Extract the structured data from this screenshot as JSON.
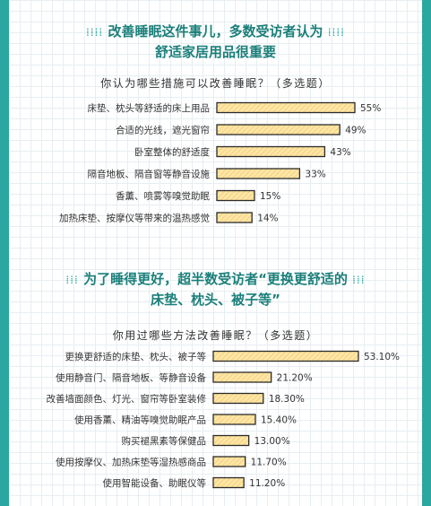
{
  "colors": {
    "bar_fill": "#fde6a8",
    "bar_stroke": "#2b2b2b",
    "title": "#1b7f7a",
    "frame": "#2aa7a0",
    "hatch": "#f6c96b"
  },
  "chart_data": [
    {
      "type": "bar",
      "orientation": "horizontal",
      "title_lines": [
        "改善睡眠这件事儿，多数受访者认为",
        "舒适家居用品很重要"
      ],
      "subtitle": "你认为哪些措施可以改善睡眠？（多选题）",
      "categories": [
        "床垫、枕头等舒适的床上用品",
        "合适的光线，遮光窗帘",
        "卧室整体的舒适度",
        "隔音地板、隔音窗等静音设施",
        "香薰、喷雾等嗅觉助眠",
        "加热床垫、按摩仪等带来的温热感觉"
      ],
      "values": [
        55,
        49,
        43,
        33,
        15,
        14
      ],
      "value_labels": [
        "55%",
        "49%",
        "43%",
        "33%",
        "15%",
        "14%"
      ],
      "unit": "%"
    },
    {
      "type": "bar",
      "orientation": "horizontal",
      "title_lines": [
        "为了睡得更好，超半数受访者“更换更舒适的",
        "床垫、枕头、被子等”"
      ],
      "subtitle": "你用过哪些方法改善睡眠？（多选题）",
      "categories": [
        "更换更舒适的床垫、枕头、被子等",
        "使用静音门、隔音地板、等静音设备",
        "改善墙面颜色、灯光、窗帘等卧室装修",
        "使用香薰、精油等嗅觉助眠产品",
        "购买褪黑素等保健品",
        "使用按摩仪、加热床垫等湿热感商品",
        "使用智能设备、助眠仪等"
      ],
      "values": [
        53.1,
        21.2,
        18.3,
        15.4,
        13.0,
        11.7,
        11.2
      ],
      "value_labels": [
        "53.10%",
        "21.20%",
        "18.30%",
        "15.40%",
        "13.00%",
        "11.70%",
        "11.20%"
      ],
      "unit": "%"
    }
  ]
}
